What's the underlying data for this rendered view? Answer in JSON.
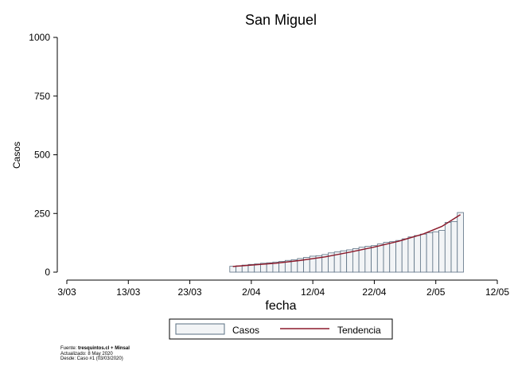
{
  "chart_data": {
    "type": "bar",
    "title": "San Miguel",
    "xlabel": "fecha",
    "ylabel": "Casos",
    "ylim": [
      0,
      1000
    ],
    "yticks": [
      0,
      250,
      500,
      750,
      1000
    ],
    "xlim": [
      "2020-03-03",
      "2020-05-12"
    ],
    "xticks": [
      {
        "date": "2020-03-03",
        "label": "3/03"
      },
      {
        "date": "2020-03-13",
        "label": "13/03"
      },
      {
        "date": "2020-03-23",
        "label": "23/03"
      },
      {
        "date": "2020-04-02",
        "label": "2/04"
      },
      {
        "date": "2020-04-12",
        "label": "12/04"
      },
      {
        "date": "2020-04-22",
        "label": "22/04"
      },
      {
        "date": "2020-05-02",
        "label": "2/05"
      },
      {
        "date": "2020-05-12",
        "label": "12/05"
      }
    ],
    "grid": false,
    "legend_position": "bottom",
    "series": [
      {
        "name": "Casos",
        "type": "bar",
        "color": "#f2f4f6",
        "edge_color": "#5a6f82",
        "dates": [
          "2020-03-30",
          "2020-03-31",
          "2020-04-01",
          "2020-04-02",
          "2020-04-03",
          "2020-04-04",
          "2020-04-05",
          "2020-04-06",
          "2020-04-07",
          "2020-04-08",
          "2020-04-09",
          "2020-04-10",
          "2020-04-11",
          "2020-04-12",
          "2020-04-13",
          "2020-04-14",
          "2020-04-15",
          "2020-04-16",
          "2020-04-17",
          "2020-04-18",
          "2020-04-19",
          "2020-04-20",
          "2020-04-21",
          "2020-04-22",
          "2020-04-23",
          "2020-04-24",
          "2020-04-25",
          "2020-04-26",
          "2020-04-27",
          "2020-04-28",
          "2020-04-29",
          "2020-04-30",
          "2020-05-01",
          "2020-05-02",
          "2020-05-03",
          "2020-05-04",
          "2020-05-05",
          "2020-05-06"
        ],
        "values": [
          25,
          27,
          30,
          33,
          35,
          38,
          40,
          43,
          46,
          50,
          53,
          58,
          63,
          68,
          70,
          75,
          82,
          86,
          91,
          95,
          100,
          106,
          110,
          113,
          120,
          127,
          130,
          135,
          142,
          150,
          156,
          162,
          168,
          172,
          178,
          212,
          215,
          254
        ]
      },
      {
        "name": "Tendencia",
        "type": "line",
        "color": "#8b1a2b",
        "dates": [
          "2020-03-30",
          "2020-04-02",
          "2020-04-06",
          "2020-04-10",
          "2020-04-14",
          "2020-04-18",
          "2020-04-22",
          "2020-04-26",
          "2020-04-30",
          "2020-05-03",
          "2020-05-06"
        ],
        "values": [
          24,
          30,
          38,
          50,
          65,
          85,
          107,
          132,
          163,
          195,
          245
        ]
      }
    ],
    "source_lines": [
      {
        "prefix": "Fuente: ",
        "bold": "tresquintos.cl + Minsal"
      },
      {
        "prefix": "Actualizado: 8 May 2020",
        "bold": ""
      },
      {
        "prefix": "Desde: Caso #1  (03/03/2020)",
        "bold": ""
      }
    ]
  }
}
